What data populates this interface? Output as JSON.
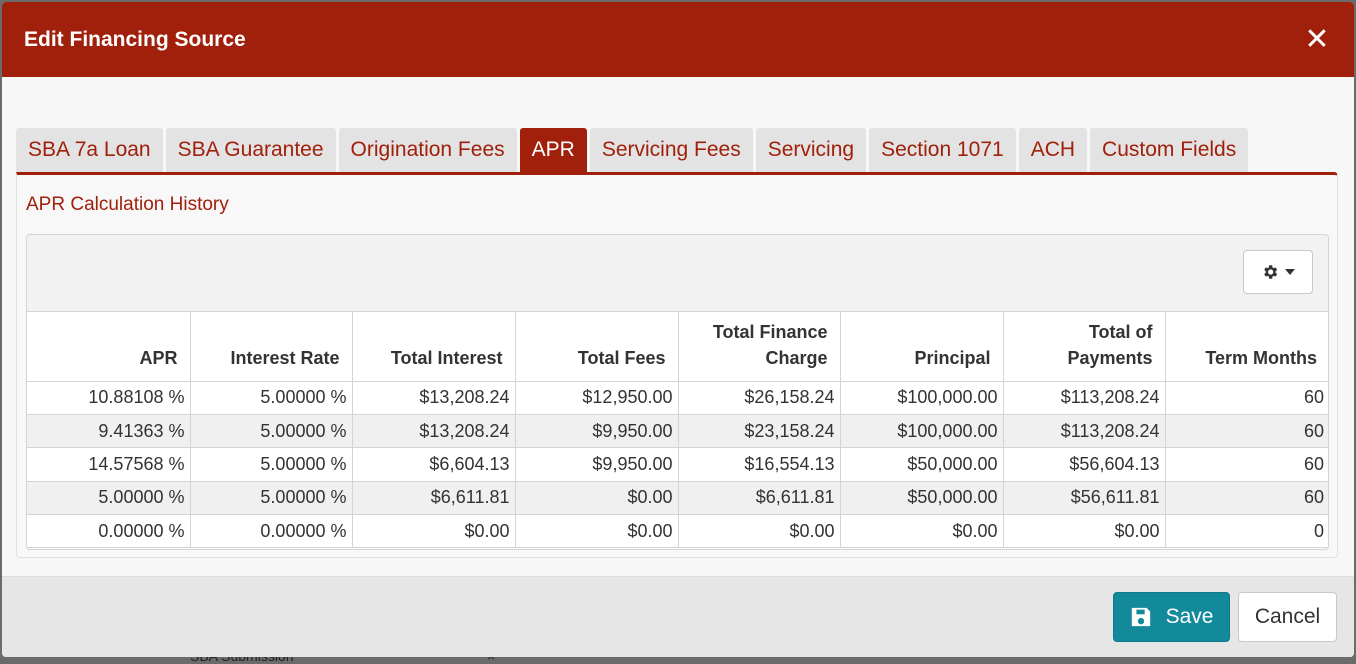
{
  "backdrop": {
    "text": "SBA Submission",
    "x_mark": "×"
  },
  "modal": {
    "title": "Edit Financing Source",
    "close_glyph": "✕"
  },
  "tabs": [
    {
      "label": "SBA 7a Loan",
      "active": false
    },
    {
      "label": "SBA Guarantee",
      "active": false
    },
    {
      "label": "Origination Fees",
      "active": false
    },
    {
      "label": "APR",
      "active": true
    },
    {
      "label": "Servicing Fees",
      "active": false
    },
    {
      "label": "Servicing",
      "active": false
    },
    {
      "label": "Section 1071",
      "active": false
    },
    {
      "label": "ACH",
      "active": false
    },
    {
      "label": "Custom Fields",
      "active": false
    }
  ],
  "section": {
    "title": "APR Calculation History"
  },
  "grid": {
    "toolbar_icon": "gear-icon",
    "columns": [
      [
        "APR"
      ],
      [
        "Interest Rate"
      ],
      [
        "Total Interest"
      ],
      [
        "Total Fees"
      ],
      [
        "Total Finance",
        "Charge"
      ],
      [
        "Principal"
      ],
      [
        "Total of",
        "Payments"
      ],
      [
        "Term Months"
      ]
    ],
    "rows": [
      [
        "10.88108 %",
        "5.00000 %",
        "$13,208.24",
        "$12,950.00",
        "$26,158.24",
        "$100,000.00",
        "$113,208.24",
        "60"
      ],
      [
        "9.41363 %",
        "5.00000 %",
        "$13,208.24",
        "$9,950.00",
        "$23,158.24",
        "$100,000.00",
        "$113,208.24",
        "60"
      ],
      [
        "14.57568 %",
        "5.00000 %",
        "$6,604.13",
        "$9,950.00",
        "$16,554.13",
        "$50,000.00",
        "$56,604.13",
        "60"
      ],
      [
        "5.00000 %",
        "5.00000 %",
        "$6,611.81",
        "$0.00",
        "$6,611.81",
        "$50,000.00",
        "$56,611.81",
        "60"
      ],
      [
        "0.00000 %",
        "0.00000 %",
        "$0.00",
        "$0.00",
        "$0.00",
        "$0.00",
        "$0.00",
        "0"
      ]
    ]
  },
  "footer": {
    "save_label": "Save",
    "cancel_label": "Cancel"
  },
  "colors": {
    "brand": "#a0200b",
    "save": "#138a9c"
  }
}
